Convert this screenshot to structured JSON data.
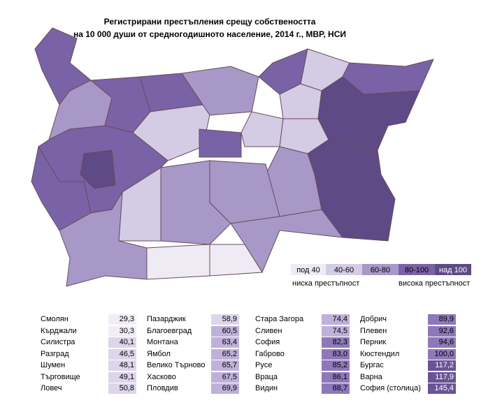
{
  "header": {
    "title": [
      "Регистрирани престъпления срещу собствеността",
      "на 10 000 души от средногодишното население, 2014 г., МВР, НСИ"
    ]
  },
  "legend": {
    "items": [
      "под 40",
      "40-60",
      "60-80",
      "80-100",
      "над 100"
    ],
    "low": "ниска престъпност",
    "high": "висока престъпност"
  },
  "table": {
    "columns": [
      [
        [
          "Смолян",
          "29,3"
        ],
        [
          "Кърджали",
          "30,3"
        ],
        [
          "Силистра",
          "40,1"
        ],
        [
          "Разград",
          "46,5"
        ],
        [
          "Шумен",
          "48,1"
        ],
        [
          "Търговище",
          "49,1"
        ],
        [
          "Ловеч",
          "50,8"
        ]
      ],
      [
        [
          "Пазарджик",
          "58,9"
        ],
        [
          "Благоевград",
          "60,5"
        ],
        [
          "Монтана",
          "63,4"
        ],
        [
          "Ямбол",
          "65,2"
        ],
        [
          "Велико Търново",
          "65,7"
        ],
        [
          "Хасково",
          "67,5"
        ],
        [
          "Пловдив",
          "69,9"
        ]
      ],
      [
        [
          "Стара Загора",
          "74,4"
        ],
        [
          "Сливен",
          "74,5"
        ],
        [
          "София",
          "82,3"
        ],
        [
          "Габрово",
          "83,0"
        ],
        [
          "Русе",
          "85,2"
        ],
        [
          "Враца",
          "86,1"
        ],
        [
          "Видин",
          "88,7"
        ]
      ],
      [
        [
          "Добрич",
          "89,9"
        ],
        [
          "Плевен",
          "92,6"
        ],
        [
          "Перник",
          "94,6"
        ],
        [
          "Кюстендил",
          "100,0"
        ],
        [
          "Бургас",
          "117,2"
        ],
        [
          "Варна",
          "117,9"
        ],
        [
          "София (столица)",
          "145,4"
        ]
      ]
    ]
  }
}
